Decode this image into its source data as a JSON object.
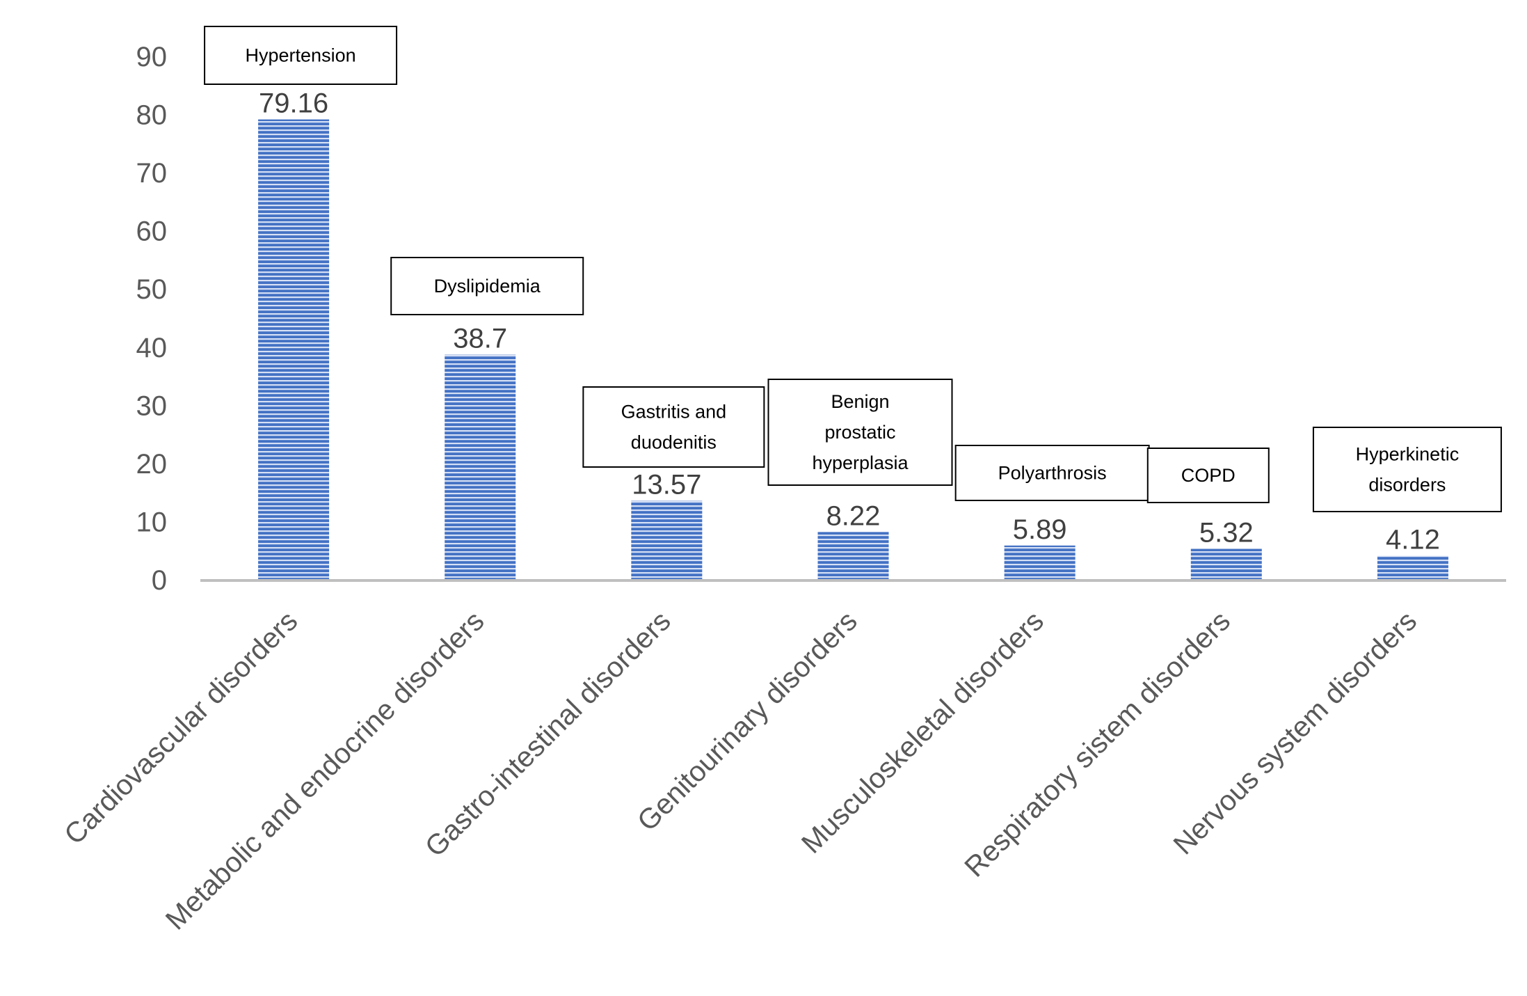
{
  "chart_data": {
    "type": "bar",
    "title": "",
    "xlabel": "",
    "ylabel": "",
    "ylim": [
      0,
      90
    ],
    "yticks": [
      0,
      10,
      20,
      30,
      40,
      50,
      60,
      70,
      80,
      90
    ],
    "grid": false,
    "categories": [
      "Cardiovascular disorders",
      "Metabolic and endocrine disorders",
      "Gastro-intestinal disorders",
      "Genitourinary disorders",
      "Musculoskeletal disorders",
      "Respiratory sistem disorders",
      "Nervous system disorders"
    ],
    "values": [
      79.16,
      38.7,
      13.57,
      8.22,
      5.89,
      5.32,
      4.12
    ],
    "value_labels": [
      "79.16",
      "38.7",
      "13.57",
      "8.22",
      "5.89",
      "5.32",
      "4.12"
    ],
    "annotations": [
      [
        "Hypertension"
      ],
      [
        "Dyslipidemia"
      ],
      [
        "Gastritis and",
        "duodenitis"
      ],
      [
        "Benign",
        "prostatic",
        "hyperplasia"
      ],
      [
        "Polyarthrosis"
      ],
      [
        "COPD"
      ],
      [
        "Hyperkinetic",
        "disorders"
      ]
    ],
    "colors": {
      "bar": "#4472c4",
      "bar_stripe": "#d6e0f5",
      "axis": "#bfbfbf"
    }
  }
}
